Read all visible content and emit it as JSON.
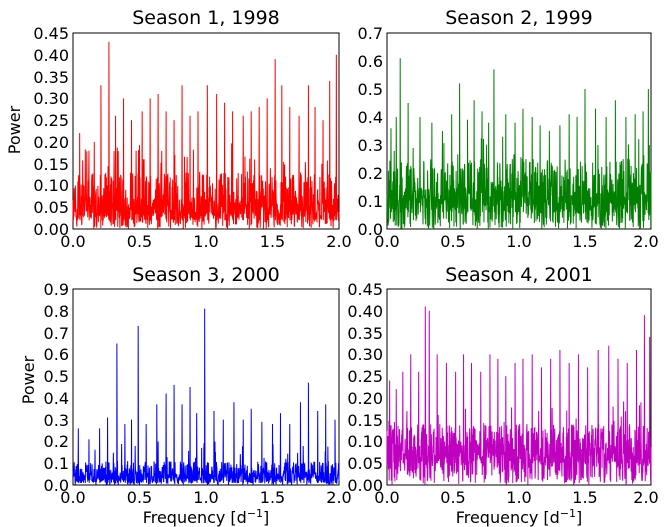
{
  "chart_data": [
    {
      "type": "line",
      "title": "Season 1, 1998",
      "xlabel": "",
      "ylabel": "Power",
      "xlim": [
        0.0,
        2.0
      ],
      "ylim": [
        0.0,
        0.45
      ],
      "xticks": [
        "0.0",
        "0.5",
        "1.0",
        "1.5",
        "2.0"
      ],
      "yticks": [
        "0.00",
        "0.05",
        "0.10",
        "0.15",
        "0.20",
        "0.25",
        "0.30",
        "0.35",
        "0.40",
        "0.45"
      ],
      "color": "#ff0000",
      "grid": false,
      "series": [
        {
          "name": "",
          "peaks": [
            [
              0.05,
              0.22
            ],
            [
              0.12,
              0.18
            ],
            [
              0.16,
              0.2
            ],
            [
              0.21,
              0.33
            ],
            [
              0.27,
              0.43
            ],
            [
              0.32,
              0.26
            ],
            [
              0.38,
              0.3
            ],
            [
              0.44,
              0.25
            ],
            [
              0.52,
              0.27
            ],
            [
              0.58,
              0.3
            ],
            [
              0.64,
              0.31
            ],
            [
              0.7,
              0.27
            ],
            [
              0.76,
              0.25
            ],
            [
              0.82,
              0.33
            ],
            [
              0.88,
              0.26
            ],
            [
              0.94,
              0.27
            ],
            [
              1.01,
              0.33
            ],
            [
              1.08,
              0.31
            ],
            [
              1.14,
              0.29
            ],
            [
              1.2,
              0.27
            ],
            [
              1.28,
              0.26
            ],
            [
              1.34,
              0.27
            ],
            [
              1.4,
              0.28
            ],
            [
              1.46,
              0.3
            ],
            [
              1.52,
              0.39
            ],
            [
              1.57,
              0.33
            ],
            [
              1.63,
              0.28
            ],
            [
              1.7,
              0.26
            ],
            [
              1.77,
              0.33
            ],
            [
              1.82,
              0.28
            ],
            [
              1.88,
              0.25
            ],
            [
              1.93,
              0.34
            ],
            [
              1.98,
              0.4
            ]
          ],
          "noise_floor": [
            0.02,
            0.13
          ],
          "noise_max": 0.2
        }
      ]
    },
    {
      "type": "line",
      "title": "Season 2, 1999",
      "xlabel": "",
      "ylabel": "",
      "xlim": [
        0.0,
        2.0
      ],
      "ylim": [
        0.0,
        0.7
      ],
      "xticks": [
        "0.0",
        "0.5",
        "1.0",
        "1.5",
        "2.0"
      ],
      "yticks": [
        "0.0",
        "0.1",
        "0.2",
        "0.3",
        "0.4",
        "0.5",
        "0.6",
        "0.7"
      ],
      "color": "#007f00",
      "grid": false,
      "series": [
        {
          "name": "",
          "peaks": [
            [
              0.03,
              0.36
            ],
            [
              0.07,
              0.4
            ],
            [
              0.1,
              0.61
            ],
            [
              0.16,
              0.45
            ],
            [
              0.25,
              0.4
            ],
            [
              0.34,
              0.38
            ],
            [
              0.42,
              0.35
            ],
            [
              0.49,
              0.41
            ],
            [
              0.55,
              0.52
            ],
            [
              0.61,
              0.39
            ],
            [
              0.66,
              0.46
            ],
            [
              0.72,
              0.42
            ],
            [
              0.77,
              0.38
            ],
            [
              0.81,
              0.57
            ],
            [
              0.9,
              0.41
            ],
            [
              0.97,
              0.38
            ],
            [
              1.03,
              0.43
            ],
            [
              1.1,
              0.4
            ],
            [
              1.16,
              0.37
            ],
            [
              1.23,
              0.35
            ],
            [
              1.31,
              0.37
            ],
            [
              1.38,
              0.41
            ],
            [
              1.44,
              0.4
            ],
            [
              1.5,
              0.5
            ],
            [
              1.58,
              0.43
            ],
            [
              1.66,
              0.4
            ],
            [
              1.73,
              0.46
            ],
            [
              1.81,
              0.4
            ],
            [
              1.88,
              0.41
            ],
            [
              1.94,
              0.42
            ],
            [
              1.98,
              0.5
            ]
          ],
          "noise_floor": [
            0.06,
            0.25
          ],
          "noise_max": 0.33
        }
      ]
    },
    {
      "type": "line",
      "title": "Season 3, 2000",
      "xlabel": "Frequency [d$^{-1}$]",
      "ylabel": "Power",
      "xlim": [
        0.0,
        2.0
      ],
      "ylim": [
        0.0,
        0.9
      ],
      "xticks": [
        "0.0",
        "0.5",
        "1.0",
        "1.5",
        "2.0"
      ],
      "yticks": [
        "0.0",
        "0.1",
        "0.2",
        "0.3",
        "0.4",
        "0.5",
        "0.6",
        "0.7",
        "0.8",
        "0.9"
      ],
      "color": "#0000ff",
      "grid": false,
      "series": [
        {
          "name": "",
          "peaks": [
            [
              0.04,
              0.26
            ],
            [
              0.12,
              0.21
            ],
            [
              0.2,
              0.26
            ],
            [
              0.26,
              0.31
            ],
            [
              0.33,
              0.65
            ],
            [
              0.39,
              0.28
            ],
            [
              0.44,
              0.3
            ],
            [
              0.49,
              0.73
            ],
            [
              0.55,
              0.28
            ],
            [
              0.63,
              0.37
            ],
            [
              0.7,
              0.42
            ],
            [
              0.76,
              0.46
            ],
            [
              0.82,
              0.37
            ],
            [
              0.88,
              0.45
            ],
            [
              0.93,
              0.33
            ],
            [
              0.99,
              0.81
            ],
            [
              1.06,
              0.34
            ],
            [
              1.13,
              0.3
            ],
            [
              1.21,
              0.38
            ],
            [
              1.28,
              0.3
            ],
            [
              1.34,
              0.35
            ],
            [
              1.42,
              0.29
            ],
            [
              1.5,
              0.28
            ],
            [
              1.56,
              0.33
            ],
            [
              1.63,
              0.28
            ],
            [
              1.71,
              0.38
            ],
            [
              1.77,
              0.47
            ],
            [
              1.84,
              0.34
            ],
            [
              1.9,
              0.37
            ],
            [
              1.97,
              0.3
            ]
          ],
          "noise_floor": [
            0.01,
            0.11
          ],
          "noise_max": 0.2
        }
      ]
    },
    {
      "type": "line",
      "title": "Season 4, 2001",
      "xlabel": "Frequency [d$^{-1}$]",
      "ylabel": "",
      "xlim": [
        0.0,
        2.0
      ],
      "ylim": [
        0.0,
        0.45
      ],
      "xticks": [
        "0.0",
        "0.5",
        "1.0",
        "1.5",
        "2.0"
      ],
      "yticks": [
        "0.00",
        "0.05",
        "0.10",
        "0.15",
        "0.20",
        "0.25",
        "0.30",
        "0.35",
        "0.40",
        "0.45"
      ],
      "color": "#bf00bf",
      "grid": false,
      "series": [
        {
          "name": "",
          "peaks": [
            [
              0.02,
              0.24
            ],
            [
              0.07,
              0.22
            ],
            [
              0.12,
              0.26
            ],
            [
              0.18,
              0.3
            ],
            [
              0.24,
              0.26
            ],
            [
              0.29,
              0.41
            ],
            [
              0.32,
              0.4
            ],
            [
              0.38,
              0.3
            ],
            [
              0.45,
              0.28
            ],
            [
              0.52,
              0.26
            ],
            [
              0.58,
              0.3
            ],
            [
              0.64,
              0.28
            ],
            [
              0.71,
              0.26
            ],
            [
              0.78,
              0.3
            ],
            [
              0.84,
              0.29
            ],
            [
              0.9,
              0.25
            ],
            [
              0.97,
              0.28
            ],
            [
              1.03,
              0.29
            ],
            [
              1.1,
              0.3
            ],
            [
              1.17,
              0.27
            ],
            [
              1.24,
              0.29
            ],
            [
              1.31,
              0.31
            ],
            [
              1.38,
              0.28
            ],
            [
              1.45,
              0.3
            ],
            [
              1.52,
              0.27
            ],
            [
              1.6,
              0.31
            ],
            [
              1.68,
              0.32
            ],
            [
              1.75,
              0.29
            ],
            [
              1.82,
              0.28
            ],
            [
              1.89,
              0.31
            ],
            [
              1.95,
              0.39
            ],
            [
              1.99,
              0.34
            ]
          ],
          "noise_floor": [
            0.05,
            0.14
          ],
          "noise_max": 0.2
        }
      ]
    }
  ]
}
